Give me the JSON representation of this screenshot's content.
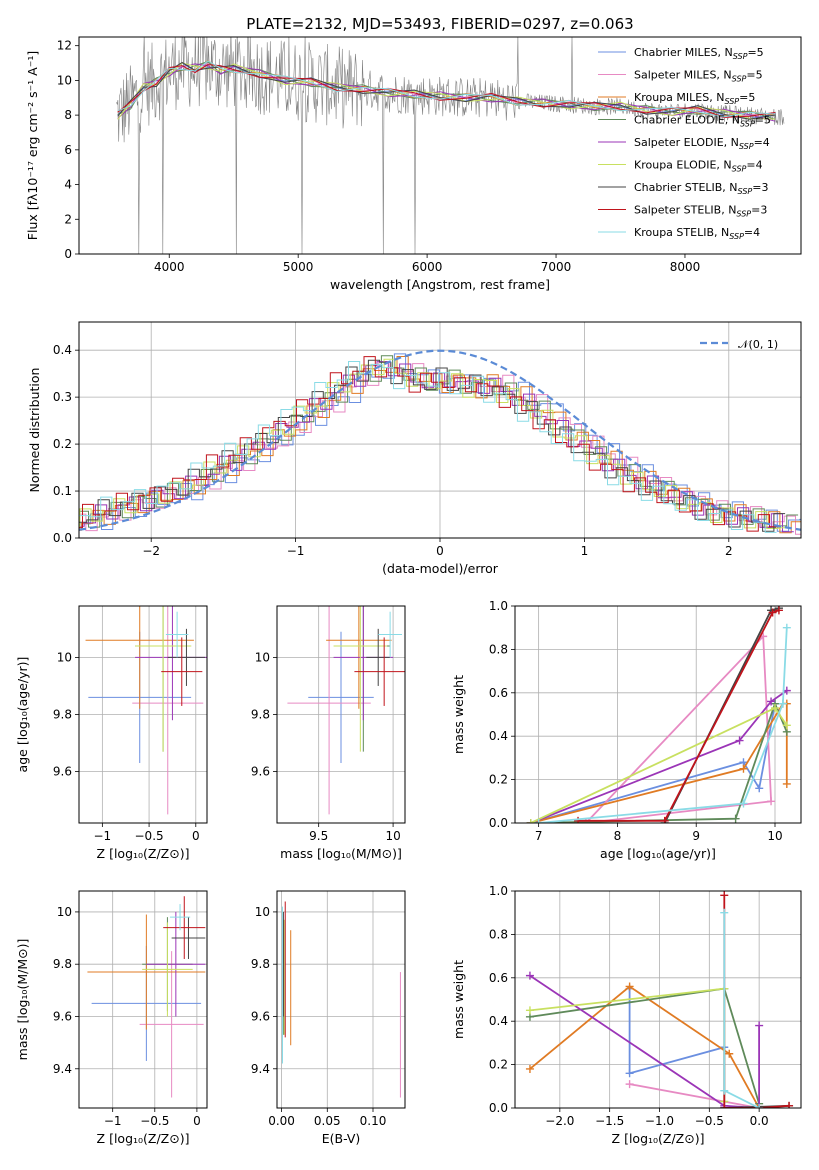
{
  "figure": {
    "title": "PLATE=2132, MJD=53493, FIBERID=0297, z=0.063"
  },
  "series_colors": {
    "chabrier_miles": "#6b8fe0",
    "salpeter_miles": "#e78ac3",
    "kroupa_miles": "#e07b24",
    "chabrier_elodie": "#5f8a5a",
    "salpeter_elodie": "#9b35b7",
    "kroupa_elodie": "#c8e060",
    "chabrier_stelib": "#444444",
    "salpeter_stelib": "#c0141c",
    "kroupa_stelib": "#8adbe6",
    "data": "#808080",
    "normal": "#5b8bd6"
  },
  "chart_data": [
    {
      "id": "spectrum",
      "type": "line",
      "title": "PLATE=2132, MJD=53493, FIBERID=0297, z=0.063",
      "xlabel": "wavelength [Angstrom, rest frame]",
      "ylabel": "Flux [fλ10⁻¹⁷ erg cm⁻² s⁻¹ A⁻¹]",
      "xlim": [
        3300,
        8900
      ],
      "ylim": [
        0,
        12.5
      ],
      "xticks": [
        4000,
        5000,
        6000,
        7000,
        8000
      ],
      "yticks": [
        0,
        2,
        4,
        6,
        8,
        10,
        12
      ],
      "grid": false,
      "legend_position": "top-right",
      "legend": [
        {
          "label": "Chabrier MILES, N",
          "sub": "SSP",
          "n": "=5",
          "key": "chabrier_miles"
        },
        {
          "label": "Salpeter MILES, N",
          "sub": "SSP",
          "n": "=5",
          "key": "salpeter_miles"
        },
        {
          "label": "Kroupa MILES, N",
          "sub": "SSP",
          "n": "=5",
          "key": "kroupa_miles"
        },
        {
          "label": "Chabrier ELODIE, N",
          "sub": "SSP",
          "n": "=5",
          "key": "chabrier_elodie"
        },
        {
          "label": "Salpeter ELODIE, N",
          "sub": "SSP",
          "n": "=4",
          "key": "salpeter_elodie"
        },
        {
          "label": "Kroupa ELODIE, N",
          "sub": "SSP",
          "n": "=4",
          "key": "kroupa_elodie"
        },
        {
          "label": "Chabrier STELIB, N",
          "sub": "SSP",
          "n": "=3",
          "key": "chabrier_stelib"
        },
        {
          "label": "Salpeter STELIB, N",
          "sub": "SSP",
          "n": "=3",
          "key": "salpeter_stelib"
        },
        {
          "label": "Kroupa STELIB, N",
          "sub": "SSP",
          "n": "=4",
          "key": "kroupa_stelib"
        }
      ],
      "model_x": [
        3600,
        3700,
        3800,
        3900,
        4000,
        4100,
        4200,
        4300,
        4400,
        4500,
        4700,
        4900,
        5100,
        5300,
        5500,
        5700,
        5900,
        6100,
        6300,
        6500,
        6700,
        6900,
        7100,
        7300,
        7500,
        7700,
        7900,
        8100,
        8300,
        8500,
        8700
      ],
      "model_y": [
        8.0,
        8.6,
        9.6,
        9.9,
        10.5,
        10.8,
        10.7,
        10.9,
        10.6,
        10.7,
        10.4,
        10.0,
        9.9,
        9.6,
        9.5,
        9.3,
        9.2,
        9.1,
        9.0,
        9.0,
        8.8,
        8.7,
        8.6,
        8.5,
        8.5,
        8.3,
        8.2,
        8.3,
        8.1,
        8.0,
        7.9
      ]
    },
    {
      "id": "residuals",
      "type": "histogram",
      "xlabel": "(data-model)/error",
      "ylabel": "Normed distribution",
      "xlim": [
        -2.5,
        2.5
      ],
      "ylim": [
        0,
        0.46
      ],
      "xticks": [
        -2,
        -1,
        0,
        1,
        2
      ],
      "yticks": [
        0.0,
        0.1,
        0.2,
        0.3,
        0.4
      ],
      "grid": true,
      "legend_position": "top-right",
      "legend_label": "𝒩(0, 1)",
      "bin_width": 0.1,
      "bin_start": -2.5,
      "reference_hist": [
        0.03,
        0.035,
        0.04,
        0.05,
        0.06,
        0.065,
        0.075,
        0.08,
        0.085,
        0.095,
        0.1,
        0.11,
        0.125,
        0.14,
        0.155,
        0.165,
        0.18,
        0.195,
        0.21,
        0.225,
        0.24,
        0.26,
        0.275,
        0.29,
        0.31,
        0.33,
        0.345,
        0.355,
        0.37,
        0.365,
        0.35,
        0.34,
        0.33,
        0.33,
        0.34,
        0.33,
        0.32,
        0.33,
        0.325,
        0.31,
        0.3,
        0.285,
        0.27,
        0.25,
        0.23,
        0.215,
        0.2,
        0.18,
        0.165,
        0.15,
        0.135,
        0.12,
        0.11,
        0.1,
        0.09,
        0.08,
        0.07,
        0.06,
        0.055,
        0.05,
        0.045,
        0.04,
        0.035,
        0.03,
        0.03
      ]
    },
    {
      "id": "age_vs_Z",
      "type": "errorbar",
      "xlabel": "Z [log₁₀(Z/Z⊙)]",
      "ylabel": "age  [log₁₀(age/yr)]",
      "xlim": [
        -1.25,
        0.12
      ],
      "ylim": [
        9.42,
        10.18
      ],
      "xticks": [
        -1,
        -0.5,
        0
      ],
      "xticklabels": [
        "−1",
        "−0.5",
        "0"
      ],
      "yticks": [
        9.6,
        9.8,
        10.0
      ],
      "grid": true,
      "points": [
        {
          "key": "chabrier_miles",
          "x": -0.6,
          "xerr": 0.55,
          "y": 9.86,
          "yerr": 0.23
        },
        {
          "key": "salpeter_miles",
          "x": -0.3,
          "xerr": 0.38,
          "y": 9.84,
          "yerr": 0.39
        },
        {
          "key": "kroupa_miles",
          "x": -0.6,
          "xerr": 0.58,
          "y": 10.06,
          "yerr": 0.24
        },
        {
          "key": "chabrier_elodie",
          "x": -0.35,
          "xerr": 0.3,
          "y": 10.04,
          "yerr": 0.37
        },
        {
          "key": "salpeter_elodie",
          "x": -0.25,
          "xerr": 0.4,
          "y": 10.0,
          "yerr": 0.22
        },
        {
          "key": "kroupa_elodie",
          "x": -0.35,
          "xerr": 0.3,
          "y": 10.04,
          "yerr": 0.37
        },
        {
          "key": "chabrier_stelib",
          "x": -0.1,
          "xerr": 0.2,
          "y": 10.0,
          "yerr": 0.1
        },
        {
          "key": "salpeter_stelib",
          "x": -0.15,
          "xerr": 0.22,
          "y": 9.95,
          "yerr": 0.12
        },
        {
          "key": "kroupa_stelib",
          "x": -0.2,
          "xerr": 0.12,
          "y": 10.08,
          "yerr": 0.08
        }
      ]
    },
    {
      "id": "age_vs_mass",
      "type": "errorbar",
      "xlabel": "mass [log₁₀(M/M⊙)]",
      "ylabel": "",
      "xlim": [
        9.22,
        10.08
      ],
      "ylim": [
        9.42,
        10.18
      ],
      "xticks": [
        9.5,
        10.0
      ],
      "yticks": [
        9.6,
        9.8,
        10.0
      ],
      "grid": true,
      "points": [
        {
          "key": "chabrier_miles",
          "x": 9.65,
          "xerr": 0.22,
          "y": 9.86,
          "yerr": 0.23
        },
        {
          "key": "salpeter_miles",
          "x": 9.57,
          "xerr": 0.28,
          "y": 9.84,
          "yerr": 0.39
        },
        {
          "key": "kroupa_miles",
          "x": 9.77,
          "xerr": 0.22,
          "y": 10.06,
          "yerr": 0.24
        },
        {
          "key": "chabrier_elodie",
          "x": 9.8,
          "xerr": 0.18,
          "y": 10.04,
          "yerr": 0.37
        },
        {
          "key": "salpeter_elodie",
          "x": 9.8,
          "xerr": 0.2,
          "y": 10.0,
          "yerr": 0.22
        },
        {
          "key": "kroupa_elodie",
          "x": 9.78,
          "xerr": 0.18,
          "y": 10.04,
          "yerr": 0.37
        },
        {
          "key": "chabrier_stelib",
          "x": 9.9,
          "xerr": 0.08,
          "y": 10.0,
          "yerr": 0.1
        },
        {
          "key": "salpeter_stelib",
          "x": 9.94,
          "xerr": 0.2,
          "y": 9.95,
          "yerr": 0.12
        },
        {
          "key": "kroupa_stelib",
          "x": 9.98,
          "xerr": 0.08,
          "y": 10.08,
          "yerr": 0.08
        }
      ]
    },
    {
      "id": "mass_vs_Z",
      "type": "errorbar",
      "xlabel": "Z [log₁₀(Z/Z⊙)]",
      "ylabel": "mass [log₁₀(M/M⊙)]",
      "xlim": [
        -1.4,
        0.12
      ],
      "ylim": [
        9.25,
        10.08
      ],
      "xticks": [
        -1,
        -0.5,
        0
      ],
      "xticklabels": [
        "−1",
        "−0.5",
        "0"
      ],
      "yticks": [
        9.4,
        9.6,
        9.8,
        10.0
      ],
      "grid": true,
      "points": [
        {
          "key": "chabrier_miles",
          "x": -0.6,
          "xerr": 0.65,
          "y": 9.65,
          "yerr": 0.22
        },
        {
          "key": "salpeter_miles",
          "x": -0.3,
          "xerr": 0.38,
          "y": 9.57,
          "yerr": 0.28
        },
        {
          "key": "kroupa_miles",
          "x": -0.6,
          "xerr": 0.7,
          "y": 9.77,
          "yerr": 0.22
        },
        {
          "key": "chabrier_elodie",
          "x": -0.35,
          "xerr": 0.3,
          "y": 9.8,
          "yerr": 0.18
        },
        {
          "key": "salpeter_elodie",
          "x": -0.25,
          "xerr": 0.35,
          "y": 9.8,
          "yerr": 0.2
        },
        {
          "key": "kroupa_elodie",
          "x": -0.35,
          "xerr": 0.3,
          "y": 9.78,
          "yerr": 0.18
        },
        {
          "key": "chabrier_stelib",
          "x": -0.1,
          "xerr": 0.2,
          "y": 9.9,
          "yerr": 0.08
        },
        {
          "key": "salpeter_stelib",
          "x": -0.15,
          "xerr": 0.25,
          "y": 9.94,
          "yerr": 0.12
        },
        {
          "key": "kroupa_stelib",
          "x": -0.2,
          "xerr": 0.12,
          "y": 9.98,
          "yerr": 0.05
        }
      ]
    },
    {
      "id": "mass_vs_ebv",
      "type": "errorbar",
      "xlabel": "E(B-V)",
      "ylabel": "",
      "xlim": [
        -0.005,
        0.135
      ],
      "ylim": [
        9.25,
        10.08
      ],
      "xticks": [
        0.0,
        0.05,
        0.1
      ],
      "xticklabels": [
        "0.00",
        "0.05",
        "0.10"
      ],
      "yticks": [
        9.4,
        9.6,
        9.8,
        10.0
      ],
      "grid": true,
      "points": [
        {
          "key": "chabrier_miles",
          "x": 0.001,
          "xerr": 0,
          "y": 9.65,
          "yerr": 0.22
        },
        {
          "key": "salpeter_miles",
          "x": 0.13,
          "xerr": 0,
          "y": 9.53,
          "yerr": 0.24
        },
        {
          "key": "kroupa_miles",
          "x": 0.01,
          "xerr": 0,
          "y": 9.71,
          "yerr": 0.22
        },
        {
          "key": "chabrier_elodie",
          "x": 0.002,
          "xerr": 0,
          "y": 9.75,
          "yerr": 0.22
        },
        {
          "key": "salpeter_elodie",
          "x": 0.001,
          "xerr": 0,
          "y": 9.72,
          "yerr": 0.2
        },
        {
          "key": "kroupa_elodie",
          "x": 0.003,
          "xerr": 0,
          "y": 9.75,
          "yerr": 0.22
        },
        {
          "key": "chabrier_stelib",
          "x": 0.002,
          "xerr": 0,
          "y": 9.8,
          "yerr": 0.2
        },
        {
          "key": "salpeter_stelib",
          "x": 0.004,
          "xerr": 0,
          "y": 9.78,
          "yerr": 0.26
        },
        {
          "key": "kroupa_stelib",
          "x": 0.001,
          "xerr": 0,
          "y": 9.72,
          "yerr": 0.3
        }
      ]
    },
    {
      "id": "weight_vs_age",
      "type": "line",
      "xlabel": "age  [log₁₀(age/yr)]",
      "ylabel": "mass weight",
      "xlim": [
        6.7,
        10.33
      ],
      "ylim": [
        0,
        1.0
      ],
      "xticks": [
        7,
        8,
        9,
        10
      ],
      "yticks": [
        0.0,
        0.2,
        0.4,
        0.6,
        0.8,
        1.0
      ],
      "grid": true,
      "series": [
        {
          "key": "chabrier_miles",
          "x": [
            6.9,
            9.6,
            9.8,
            10.0
          ],
          "y": [
            0.0,
            0.28,
            0.16,
            0.55
          ]
        },
        {
          "key": "salpeter_miles",
          "x": [
            7.6,
            9.85,
            9.95,
            7.6
          ],
          "y": [
            0.0,
            0.86,
            0.1,
            0.0
          ]
        },
        {
          "key": "kroupa_miles",
          "x": [
            6.9,
            9.6,
            10.1,
            10.15,
            10.15
          ],
          "y": [
            0.0,
            0.25,
            0.55,
            0.55,
            0.18
          ]
        },
        {
          "key": "chabrier_elodie",
          "x": [
            6.9,
            9.5,
            10.0,
            10.15
          ],
          "y": [
            0.0,
            0.02,
            0.55,
            0.42
          ]
        },
        {
          "key": "salpeter_elodie",
          "x": [
            6.9,
            9.55,
            9.95,
            10.15
          ],
          "y": [
            0.0,
            0.38,
            0.56,
            0.61
          ]
        },
        {
          "key": "kroupa_elodie",
          "x": [
            6.9,
            10.0,
            10.15
          ],
          "y": [
            0.0,
            0.53,
            0.45
          ]
        },
        {
          "key": "chabrier_stelib",
          "x": [
            8.6,
            9.95,
            10.05
          ],
          "y": [
            0.0,
            0.98,
            0.99
          ]
        },
        {
          "key": "salpeter_stelib",
          "x": [
            7.5,
            8.6,
            9.97,
            10.05
          ],
          "y": [
            0.01,
            0.01,
            0.97,
            0.98
          ]
        },
        {
          "key": "kroupa_stelib",
          "x": [
            7.0,
            9.6,
            10.1,
            10.15
          ],
          "y": [
            0.0,
            0.09,
            0.55,
            0.9
          ]
        }
      ]
    },
    {
      "id": "weight_vs_Z",
      "type": "line",
      "xlabel": "Z [log₁₀(Z/Z⊙)]",
      "ylabel": "mass weight",
      "xlim": [
        -2.45,
        0.42
      ],
      "ylim": [
        0,
        1.0
      ],
      "xticks": [
        -2.0,
        -1.5,
        -1.0,
        -0.5,
        0.0
      ],
      "xticklabels": [
        "−2.0",
        "−1.5",
        "−1.0",
        "−0.5",
        "0.0"
      ],
      "yticks": [
        0.0,
        0.2,
        0.4,
        0.6,
        0.8,
        1.0
      ],
      "grid": true,
      "series": [
        {
          "key": "chabrier_miles",
          "x": [
            -1.3,
            -1.3,
            -0.35,
            -0.35
          ],
          "y": [
            0.55,
            0.16,
            0.28,
            0.0
          ]
        },
        {
          "key": "salpeter_miles",
          "x": [
            -1.3,
            0.0
          ],
          "y": [
            0.11,
            0.0
          ]
        },
        {
          "key": "kroupa_miles",
          "x": [
            -2.3,
            -1.3,
            -0.3,
            0.0
          ],
          "y": [
            0.18,
            0.56,
            0.25,
            0.0
          ]
        },
        {
          "key": "chabrier_elodie",
          "x": [
            -2.3,
            -0.35,
            0.0
          ],
          "y": [
            0.42,
            0.55,
            0.02
          ]
        },
        {
          "key": "salpeter_elodie",
          "x": [
            -2.3,
            -0.35,
            0.0,
            0.0
          ],
          "y": [
            0.61,
            0.01,
            0.0,
            0.38
          ]
        },
        {
          "key": "kroupa_elodie",
          "x": [
            -2.3,
            -0.35,
            -0.35
          ],
          "y": [
            0.45,
            0.55,
            0.03
          ]
        },
        {
          "key": "chabrier_stelib",
          "x": [
            -0.35,
            0.3
          ],
          "y": [
            0.0,
            0.01
          ]
        },
        {
          "key": "salpeter_stelib",
          "x": [
            -0.35,
            -0.35,
            0.0,
            0.3
          ],
          "y": [
            0.98,
            0.0,
            0.0,
            0.01
          ]
        },
        {
          "key": "kroupa_stelib",
          "x": [
            -0.35,
            -0.35,
            0.0
          ],
          "y": [
            0.9,
            0.08,
            0.0
          ]
        }
      ]
    }
  ]
}
